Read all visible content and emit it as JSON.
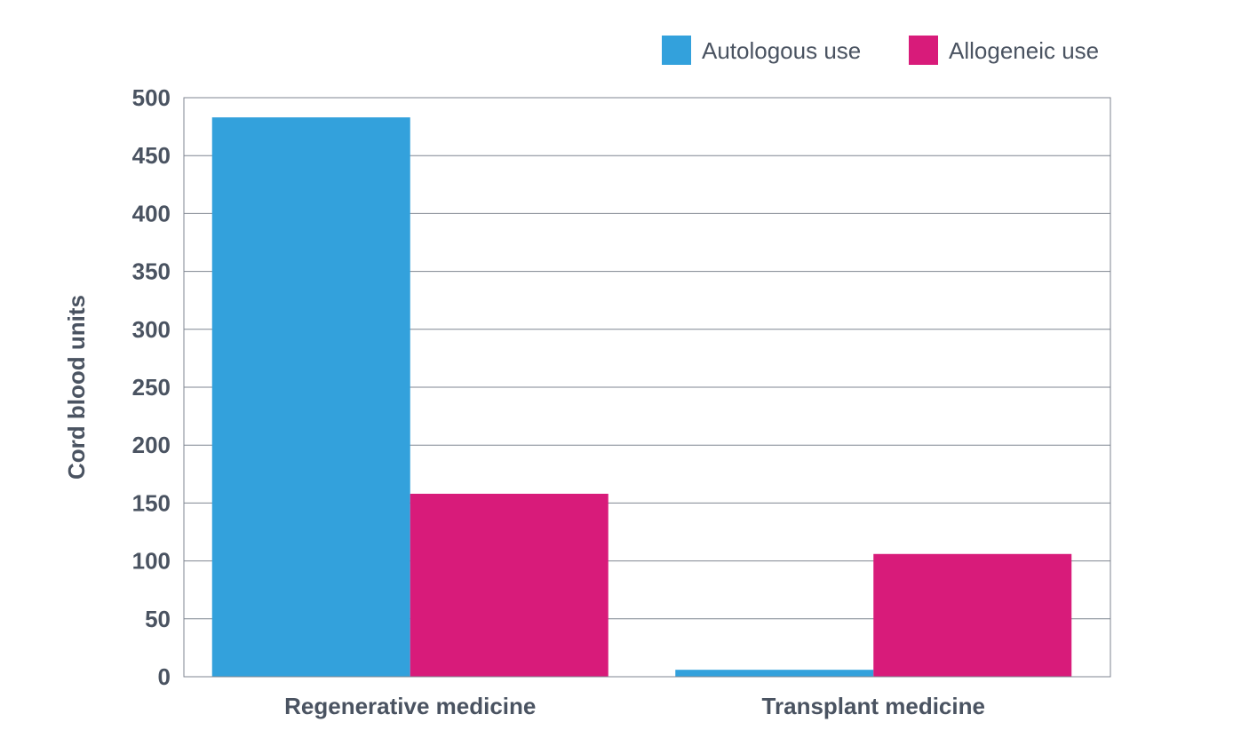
{
  "chart_data": {
    "type": "bar",
    "categories": [
      "Regenerative medicine",
      "Transplant medicine"
    ],
    "series": [
      {
        "name": "Autologous use",
        "values": [
          483,
          6
        ],
        "color": "#33a1dc"
      },
      {
        "name": "Allogeneic use",
        "values": [
          158,
          106
        ],
        "color": "#d81b7a"
      }
    ],
    "ylabel": "Cord blood units",
    "ylim": [
      0,
      500
    ],
    "yticks": [
      0,
      50,
      100,
      150,
      200,
      250,
      300,
      350,
      400,
      450,
      500
    ],
    "grid": true,
    "legend_position": "top-right"
  }
}
